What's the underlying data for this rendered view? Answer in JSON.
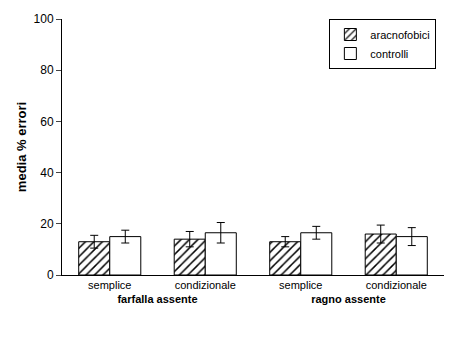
{
  "chart_data": {
    "type": "bar",
    "y_label": "media % errori",
    "categories": [
      "semplice",
      "condizionale",
      "semplice",
      "condizionale"
    ],
    "groups": [
      "farfalla assente",
      "farfalla assente",
      "ragno assente",
      "ragno assente"
    ],
    "series": [
      {
        "name": "aracnofobici",
        "color": "#ffffff",
        "marker": "hatch",
        "values": [
          13,
          14,
          13,
          16
        ],
        "errors": [
          2.5,
          3,
          2,
          3.5
        ]
      },
      {
        "name": "controlli",
        "color": "#ffffff",
        "marker": "solid",
        "values": [
          15,
          16.5,
          16.5,
          15
        ],
        "errors": [
          2.5,
          4,
          2.5,
          3.5
        ]
      }
    ],
    "ylim": [
      0,
      100
    ],
    "yticks": [
      0,
      20,
      40,
      60,
      80,
      100
    ],
    "grid": false,
    "legend": "top right"
  }
}
